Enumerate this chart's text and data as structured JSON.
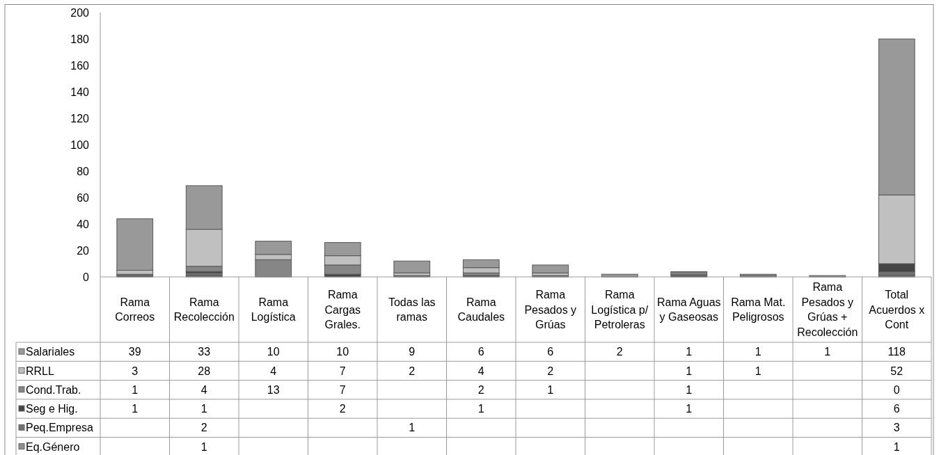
{
  "chart_data": {
    "type": "bar",
    "stacked": true,
    "categories": [
      "Rama Correos",
      "Rama Recolección",
      "Rama Logística",
      "Rama Cargas Grales.",
      "Todas las ramas",
      "Rama Caudales",
      "Rama Pesados y Grúas",
      "Rama Logística p/ Petroleras",
      "Rama Aguas y Gaseosas",
      "Rama Mat. Peligrosos",
      "Rama Pesados y Grúas + Recolección",
      "Total Acuerdos x Cont"
    ],
    "series": [
      {
        "name": "Eq.Género",
        "color": "#8e8e8e",
        "values": [
          null,
          1,
          null,
          null,
          null,
          null,
          null,
          null,
          null,
          null,
          null,
          1
        ]
      },
      {
        "name": "Peq.Empresa",
        "color": "#707070",
        "values": [
          null,
          2,
          null,
          null,
          1,
          null,
          null,
          null,
          null,
          null,
          null,
          3
        ]
      },
      {
        "name": "Seg e Hig.",
        "color": "#454545",
        "values": [
          1,
          1,
          null,
          2,
          null,
          1,
          null,
          null,
          1,
          null,
          null,
          6
        ]
      },
      {
        "name": "Cond.Trab.",
        "color": "#868686",
        "values": [
          1,
          4,
          13,
          7,
          null,
          2,
          1,
          null,
          1,
          null,
          null,
          0
        ]
      },
      {
        "name": "RRLL",
        "color": "#c0c0c0",
        "values": [
          3,
          28,
          4,
          7,
          2,
          4,
          2,
          null,
          1,
          1,
          null,
          52
        ]
      },
      {
        "name": "Salariales",
        "color": "#999999",
        "values": [
          39,
          33,
          10,
          10,
          9,
          6,
          6,
          2,
          1,
          1,
          1,
          118
        ]
      }
    ],
    "ylim": [
      0,
      200
    ],
    "yticks": [
      0,
      20,
      40,
      60,
      80,
      100,
      120,
      140,
      160,
      180,
      200
    ],
    "data_labels": true,
    "legend": "bottom"
  }
}
